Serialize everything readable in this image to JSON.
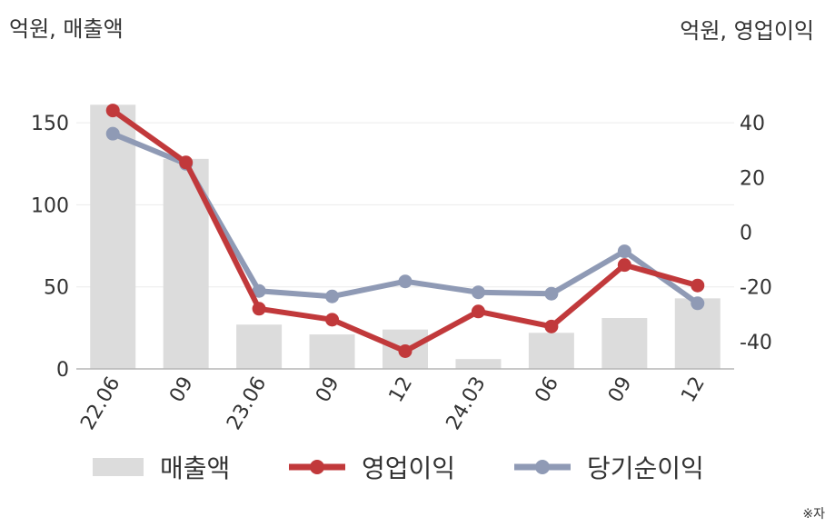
{
  "units": {
    "left": "억원, 매출액",
    "right": "억원, 영업이익"
  },
  "note": "※자",
  "chart_data": {
    "type": "bar",
    "categories": [
      "22.06",
      "09",
      "23.06",
      "09",
      "12",
      "24.03",
      "06",
      "09",
      "12"
    ],
    "series": [
      {
        "name": "매출액",
        "type": "bar",
        "axis": "left",
        "color": "#dcdcdc",
        "values": [
          161,
          128,
          27,
          21,
          24,
          6,
          22,
          31,
          43
        ]
      },
      {
        "name": "영업이익",
        "type": "line",
        "axis": "right",
        "color": "#c1393b",
        "values": [
          44.5,
          25.5,
          -28,
          -32,
          -43.5,
          -29,
          -34.5,
          -12,
          -19.5
        ]
      },
      {
        "name": "당기순이익",
        "type": "line",
        "axis": "right",
        "color": "#8f9ab5",
        "values": [
          36,
          25,
          -21.5,
          -23.5,
          -18,
          -22,
          -22.5,
          -7,
          -26
        ]
      }
    ],
    "y_left": {
      "min": 0,
      "max": 175,
      "ticks": [
        0,
        50,
        100,
        150
      ]
    },
    "y_right": {
      "min": -50,
      "max": 55,
      "ticks": [
        -40,
        -20,
        0,
        20,
        40
      ]
    },
    "legend": [
      "매출액",
      "영업이익",
      "당기순이익"
    ],
    "grid": true
  }
}
